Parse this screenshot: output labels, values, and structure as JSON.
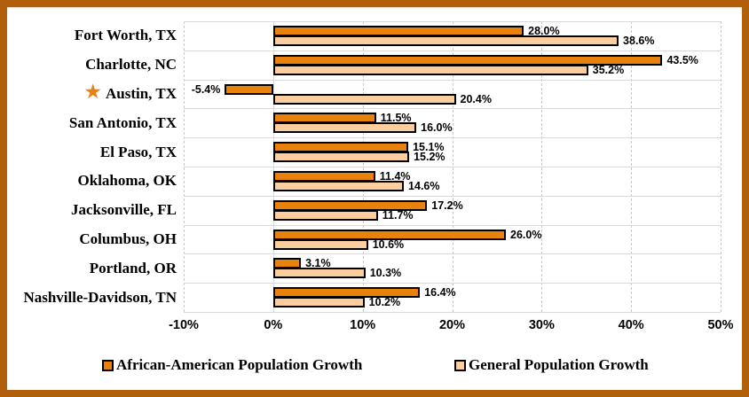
{
  "figure": {
    "border_color": "#B25F0B",
    "background": "#FFFFFF"
  },
  "chart_data": {
    "type": "bar",
    "orientation": "horizontal",
    "title": "",
    "xlabel": "",
    "ylabel": "",
    "xlim": [
      -10,
      50
    ],
    "x_ticks": [
      "-10%",
      "0%",
      "10%",
      "20%",
      "30%",
      "40%",
      "50%"
    ],
    "grid": "vertical-dashed",
    "legend_position": "bottom",
    "categories": [
      "Fort Worth, TX",
      "Charlotte, NC",
      "Austin, TX",
      "San Antonio, TX",
      "El Paso, TX",
      "Oklahoma, OK",
      "Jacksonville, FL",
      "Columbus, OH",
      "Portland, OR",
      "Nashville-Davidson, TN"
    ],
    "starred_category": "Austin, TX",
    "star_icon": "★",
    "star_color": "#E8820D",
    "series": [
      {
        "name": "African-American Population Growth",
        "color": "#E8820D",
        "values": [
          28.0,
          43.5,
          -5.4,
          11.5,
          15.1,
          11.4,
          17.2,
          26.0,
          3.1,
          16.4
        ],
        "labels": [
          "28.0%",
          "43.5%",
          "-5.4%",
          "11.5%",
          "15.1%",
          "11.4%",
          "17.2%",
          "26.0%",
          "3.1%",
          "16.4%"
        ]
      },
      {
        "name": "General Population Growth",
        "color": "#FBCEA0",
        "values": [
          38.6,
          35.2,
          20.4,
          16.0,
          15.2,
          14.6,
          11.7,
          10.6,
          10.3,
          10.2
        ],
        "labels": [
          "38.6%",
          "35.2%",
          "20.4%",
          "16.0%",
          "15.2%",
          "14.6%",
          "11.7%",
          "10.6%",
          "10.3%",
          "10.2%"
        ]
      }
    ]
  }
}
